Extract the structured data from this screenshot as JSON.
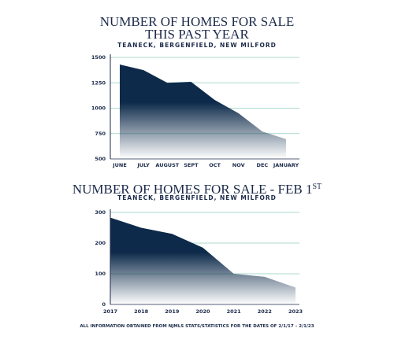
{
  "chart_data": [
    {
      "type": "area",
      "title": [
        "NUMBER OF HOMES FOR SALE",
        "THIS PAST YEAR"
      ],
      "subtitle": "TEANECK, BERGENFIELD, NEW MILFORD",
      "categories": [
        "JUNE",
        "JULY",
        "AUGUST",
        "SEPT",
        "OCT",
        "NOV",
        "DEC",
        "JANUARY"
      ],
      "values": [
        1430,
        1375,
        1250,
        1260,
        1080,
        950,
        770,
        695
      ],
      "color": "#0d2a4a",
      "ylim": [
        500,
        1500
      ],
      "yticks": [
        500,
        750,
        1000,
        1250,
        1500
      ],
      "grid": true
    },
    {
      "type": "area",
      "title": [
        "NUMBER OF HOMES FOR SALE - FEB 1"
      ],
      "title_superscript": "ST",
      "subtitle": "TEANECK, BERGENFIELD, NEW MILFORD",
      "x": [
        2017,
        2018,
        2019,
        2020,
        2021,
        2022,
        2023
      ],
      "values": [
        283,
        250,
        230,
        185,
        100,
        90,
        55
      ],
      "color": "#0d2a4a",
      "xlim": [
        2017,
        2023
      ],
      "xticks": [
        2017,
        2018,
        2019,
        2020,
        2021,
        2022,
        2023
      ],
      "ylim": [
        0,
        300
      ],
      "yticks": [
        0,
        100,
        200,
        300
      ],
      "grid": true
    }
  ],
  "footnote": "ALL INFORMATION OBTAINED FROM NJMLS STATS/STATISTICS FOR THE DATES OF 2/1/17 – 2/1/23"
}
